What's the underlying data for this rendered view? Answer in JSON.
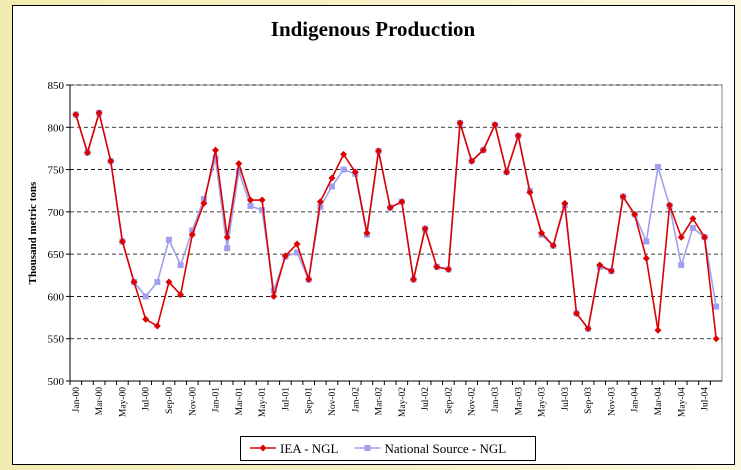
{
  "chart_data": {
    "type": "line",
    "title": "Indigenous Production",
    "y_label": "Thousand metric tons",
    "categories": [
      "Jan-00",
      null,
      "Mar-00",
      null,
      "May-00",
      null,
      "Jul-00",
      null,
      "Sep-00",
      null,
      "Nov-00",
      null,
      "Jan-01",
      null,
      "Mar-01",
      null,
      "May-01",
      null,
      "Jul-01",
      null,
      "Sep-01",
      null,
      "Nov-01",
      null,
      "Jan-02",
      null,
      "Mar-02",
      null,
      "May-02",
      null,
      "Jul-02",
      null,
      "Sep-02",
      null,
      "Nov-02",
      null,
      "Jan-03",
      null,
      "Mar-03",
      null,
      "May-03",
      null,
      "Jul-03",
      null,
      "Sep-03",
      null,
      "Nov-03",
      null,
      "Jan-04",
      null,
      "Mar-04",
      null,
      "May-04",
      null,
      "Jul-04",
      null
    ],
    "series": [
      {
        "name": "IEA - NGL",
        "color": "#dd0000",
        "marker": "diamond",
        "values": [
          815,
          770,
          817,
          760,
          665,
          617,
          573,
          565,
          617,
          602,
          673,
          710,
          773,
          670,
          757,
          714,
          714,
          600,
          648,
          662,
          620,
          712,
          740,
          768,
          747,
          675,
          772,
          705,
          712,
          620,
          680,
          635,
          632,
          805,
          760,
          773,
          803,
          747,
          790,
          723,
          675,
          660,
          710,
          580,
          562,
          637,
          630,
          718,
          697,
          645,
          560,
          708,
          670,
          692,
          670,
          550
        ]
      },
      {
        "name": "National Source - NGL",
        "color": "#a0a0f0",
        "marker": "square",
        "values": [
          815,
          770,
          817,
          760,
          665,
          617,
          600,
          617,
          667,
          637,
          678,
          715,
          763,
          657,
          748,
          707,
          702,
          607,
          647,
          652,
          620,
          706,
          730,
          750,
          745,
          673,
          772,
          705,
          712,
          620,
          680,
          635,
          632,
          805,
          760,
          773,
          803,
          747,
          790,
          725,
          673,
          660,
          708,
          580,
          562,
          635,
          630,
          718,
          697,
          665,
          753,
          707,
          637,
          681,
          670,
          588
        ]
      }
    ],
    "ylim": [
      500,
      850
    ],
    "yticks": [
      500,
      550,
      600,
      650,
      700,
      750,
      800,
      850
    ],
    "grid": true
  }
}
